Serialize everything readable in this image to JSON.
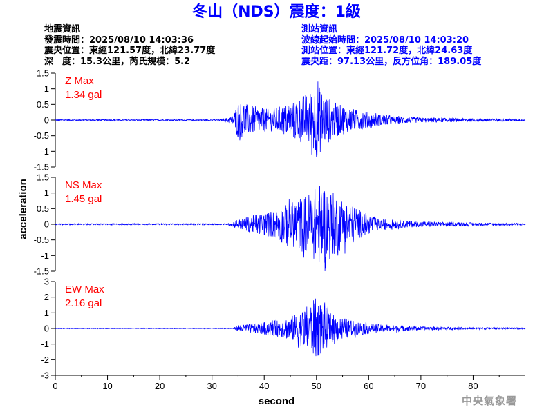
{
  "header": {
    "title": "冬山（NDS）震度：1級"
  },
  "earthquake_info": {
    "heading": "地震資訊",
    "origin_time": "發震時間：2025/08/10 14:03:36",
    "epicenter": "震央位置：東經121.57度，北緯23.77度",
    "depth_magnitude": "深　度：15.3公里，芮氏規模：5.2"
  },
  "station_info": {
    "heading": "測站資訊",
    "wave_onset": "波線起始時間：2025/08/10 14:03:20",
    "station_location": "測站位置：東經121.72度，北緯24.63度",
    "distance_azimuth": "震央距：97.13公里，反方位角：189.05度"
  },
  "footer": {
    "credit": "中央氣象署"
  },
  "colors": {
    "title": "#0000ff",
    "trace": "#0000ff",
    "max_label": "#ff0000",
    "station_info": "#0000ff",
    "credit": "#999999"
  },
  "chart_data": {
    "type": "line",
    "xlabel": "second",
    "ylabel": "acceleration",
    "xlim": [
      0,
      90
    ],
    "x_ticks": [
      "0",
      "10",
      "20",
      "30",
      "40",
      "50",
      "60",
      "70",
      "80"
    ],
    "grid": false,
    "panels": [
      {
        "component": "Z",
        "max_label": "Z Max",
        "max_value": "1.34 gal",
        "ylim": [
          -1.5,
          1.5
        ],
        "y_ticks": [
          "1.5",
          "1",
          "0.5",
          "0",
          "-0.5",
          "-1",
          "-1.5"
        ],
        "envelope": [
          [
            0,
            0.02
          ],
          [
            32,
            0.02
          ],
          [
            34,
            0.15
          ],
          [
            35,
            0.6
          ],
          [
            38,
            0.45
          ],
          [
            41,
            0.35
          ],
          [
            44,
            0.5
          ],
          [
            47,
            0.75
          ],
          [
            49,
            0.95
          ],
          [
            50,
            1.2
          ],
          [
            51,
            1.0
          ],
          [
            53,
            0.6
          ],
          [
            56,
            0.4
          ],
          [
            60,
            0.25
          ],
          [
            65,
            0.12
          ],
          [
            70,
            0.08
          ],
          [
            80,
            0.05
          ],
          [
            90,
            0.03
          ]
        ]
      },
      {
        "component": "NS",
        "max_label": "NS Max",
        "max_value": "1.45 gal",
        "ylim": [
          -1.5,
          1.5
        ],
        "y_ticks": [
          "1.5",
          "1",
          "0.5",
          "0",
          "-0.5",
          "-1",
          "-1.5"
        ],
        "envelope": [
          [
            0,
            0.02
          ],
          [
            33,
            0.02
          ],
          [
            35,
            0.15
          ],
          [
            38,
            0.3
          ],
          [
            42,
            0.45
          ],
          [
            45,
            0.7
          ],
          [
            48,
            0.95
          ],
          [
            50,
            1.2
          ],
          [
            51,
            1.4
          ],
          [
            53,
            1.05
          ],
          [
            56,
            0.7
          ],
          [
            59,
            0.4
          ],
          [
            62,
            0.18
          ],
          [
            70,
            0.08
          ],
          [
            80,
            0.05
          ],
          [
            90,
            0.03
          ]
        ]
      },
      {
        "component": "EW",
        "max_label": "EW Max",
        "max_value": "2.16 gal",
        "ylim": [
          -3,
          3
        ],
        "y_ticks": [
          "3",
          "2",
          "1",
          "0",
          "-1",
          "-2",
          "-3"
        ],
        "envelope": [
          [
            0,
            0.02
          ],
          [
            34,
            0.02
          ],
          [
            35,
            0.2
          ],
          [
            39,
            0.35
          ],
          [
            43,
            0.55
          ],
          [
            46,
            0.9
          ],
          [
            48,
            1.4
          ],
          [
            50,
            2.0
          ],
          [
            51,
            1.6
          ],
          [
            53,
            0.9
          ],
          [
            57,
            0.5
          ],
          [
            62,
            0.25
          ],
          [
            70,
            0.12
          ],
          [
            80,
            0.06
          ],
          [
            90,
            0.04
          ]
        ]
      }
    ]
  }
}
